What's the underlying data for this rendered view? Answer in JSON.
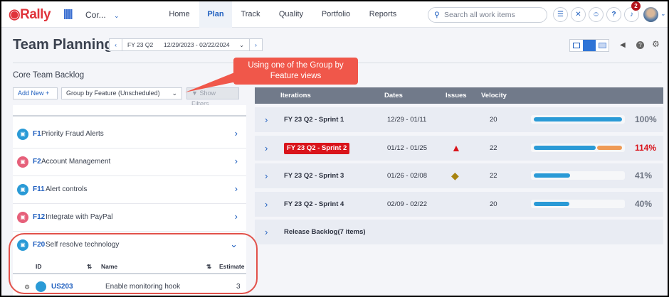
{
  "nav": {
    "brand": "Rally",
    "workspace": "Cor...",
    "items": [
      {
        "label": "Home"
      },
      {
        "label": "Plan",
        "active": true
      },
      {
        "label": "Track"
      },
      {
        "label": "Quality"
      },
      {
        "label": "Portfolio"
      },
      {
        "label": "Reports"
      }
    ],
    "search_placeholder": "Search all work items",
    "notification_count": "2",
    "icons": [
      "list-icon",
      "tools-icon",
      "robot-icon",
      "help-icon",
      "bell-icon"
    ]
  },
  "page": {
    "title": "Team Planning",
    "iteration": {
      "name": "FY 23 Q2",
      "range": "12/29/2023 - 02/22/2024"
    }
  },
  "backlog": {
    "title": "Core Team Backlog",
    "add_new": "Add New",
    "group_by": "Group by Feature (Unscheduled)",
    "show_filters": "Show Filters",
    "features": [
      {
        "id": "F1",
        "name": "Priority Fraud Alerts",
        "color": "#2a9ad6"
      },
      {
        "id": "F2",
        "name": "Account Management",
        "color": "#e6607a"
      },
      {
        "id": "F11",
        "name": "Alert controls",
        "color": "#2a9ad6"
      },
      {
        "id": "F12",
        "name": "Integrate with PayPal",
        "color": "#e6607a"
      },
      {
        "id": "F20",
        "name": "Self resolve technology",
        "color": "#2a9ad6",
        "expanded": true
      }
    ],
    "columns": {
      "id": "ID",
      "name": "Name",
      "estimate": "Estimate"
    },
    "stories": [
      {
        "id": "US203",
        "name": "Enable monitoring hook",
        "estimate": "3"
      }
    ]
  },
  "iterations": {
    "headers": {
      "iterations": "Iterations",
      "dates": "Dates",
      "issues": "Issues",
      "velocity": "Velocity"
    },
    "rows": [
      {
        "name": "FY 23 Q2 - Sprint 1",
        "dates": "12/29 - 01/11",
        "issue": "",
        "velocity": "20",
        "percent": "100%",
        "load": 100
      },
      {
        "name": "FY 23 Q2 - Sprint 2",
        "dates": "01/12 - 01/25",
        "issue": "error",
        "velocity": "22",
        "percent": "114%",
        "load": 114,
        "over": true
      },
      {
        "name": "FY 23 Q2 - Sprint 3",
        "dates": "01/26 - 02/08",
        "issue": "warning",
        "velocity": "22",
        "percent": "41%",
        "load": 41
      },
      {
        "name": "FY 23 Q2 - Sprint 4",
        "dates": "02/09 - 02/22",
        "issue": "",
        "velocity": "20",
        "percent": "40%",
        "load": 40
      }
    ],
    "release_backlog": "Release Backlog(7 items)"
  },
  "callout": {
    "text": "Using one of the Group by Feature views"
  },
  "colors": {
    "accent": "#1f5fbf",
    "brand": "#e0343b",
    "bar": "#2a9ad6",
    "over": "#ef9a55",
    "danger": "#d9141b"
  }
}
